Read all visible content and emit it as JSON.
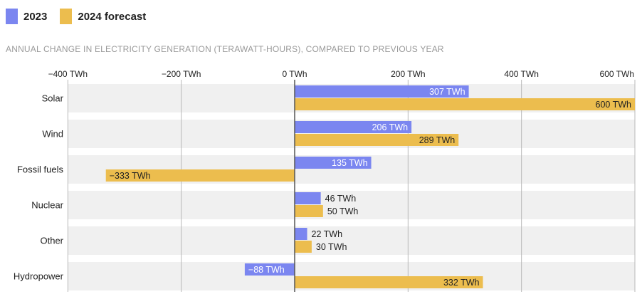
{
  "colors": {
    "y2023": "#7b86f0",
    "y2024": "#ecbd4e",
    "row_bg": "#f0f0f0",
    "grid": "#b8b8b8",
    "zero": "#555555"
  },
  "legend": [
    {
      "label": "2023",
      "color": "#7b86f0"
    },
    {
      "label": "2024 forecast",
      "color": "#ecbd4e"
    }
  ],
  "subtitle": "ANNUAL CHANGE IN ELECTRICITY GENERATION (TERAWATT-HOURS), COMPARED TO PREVIOUS YEAR",
  "chart_data": {
    "type": "bar",
    "orientation": "horizontal",
    "title": "",
    "xlabel": "",
    "ylabel": "",
    "xlim": [
      -400,
      600
    ],
    "x_ticks": [
      -400,
      -200,
      0,
      200,
      400,
      600
    ],
    "x_tick_labels": [
      "−400 TWh",
      "−200 TWh",
      "0 TWh",
      "200 TWh",
      "400 TWh",
      "600 TWh"
    ],
    "categories": [
      "Solar",
      "Wind",
      "Fossil fuels",
      "Nuclear",
      "Other",
      "Hydropower"
    ],
    "series": [
      {
        "name": "2023",
        "values": [
          307,
          206,
          135,
          46,
          22,
          -88
        ],
        "labels": [
          "307 TWh",
          "206 TWh",
          "135 TWh",
          "46 TWh",
          "22 TWh",
          "−88 TWh"
        ]
      },
      {
        "name": "2024 forecast",
        "values": [
          600,
          289,
          -333,
          50,
          30,
          332
        ],
        "labels": [
          "600 TWh",
          "289 TWh",
          "−333 TWh",
          "50 TWh",
          "30 TWh",
          "332 TWh"
        ]
      }
    ],
    "grid": true,
    "legend_position": "top-left"
  }
}
